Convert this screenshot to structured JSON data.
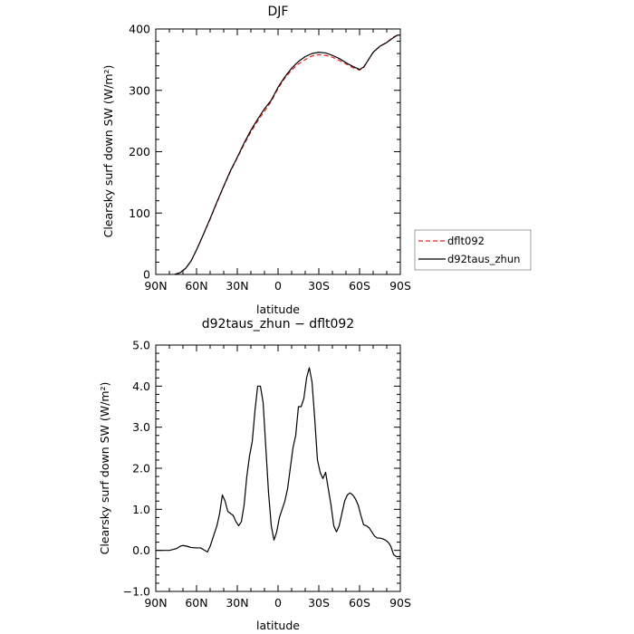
{
  "chart_data": [
    {
      "type": "line",
      "title": "DJF",
      "xlabel": "latitude",
      "ylabel": "Clearsky surf down SW (W/m²)",
      "xlim": [
        90,
        -90
      ],
      "ylim": [
        0,
        400
      ],
      "x_ticks": [
        90,
        60,
        30,
        0,
        -30,
        -60,
        -90
      ],
      "x_tick_labels": [
        "90N",
        "60N",
        "30N",
        "0",
        "30S",
        "60S",
        "90S"
      ],
      "y_ticks": [
        0,
        100,
        200,
        300,
        400
      ],
      "y_tick_labels": [
        "0",
        "100",
        "200",
        "300",
        "400"
      ],
      "legend": {
        "placement": "right",
        "entries": [
          {
            "label": "dflt092",
            "color": "#e8211a",
            "dash": "dashed"
          },
          {
            "label": "d92taus_zhun",
            "color": "#000000",
            "dash": "solid"
          }
        ]
      },
      "series": [
        {
          "name": "dflt092",
          "color": "#e8211a",
          "dash": "dashed",
          "x": [
            76,
            72,
            68,
            64,
            60,
            55,
            50,
            45,
            40,
            35,
            30,
            25,
            20,
            15,
            10,
            5,
            0,
            -5,
            -10,
            -15,
            -20,
            -25,
            -30,
            -35,
            -40,
            -45,
            -50,
            -55,
            -60,
            -63,
            -66,
            -70,
            -75,
            -80,
            -85,
            -88,
            -90
          ],
          "y": [
            0,
            3,
            10,
            22,
            40,
            65,
            90,
            117,
            143,
            168,
            190,
            212,
            232,
            250,
            266,
            282,
            303,
            320,
            333,
            343,
            350,
            356,
            358,
            357,
            354,
            349,
            343,
            337,
            333,
            337,
            348,
            362,
            372,
            378,
            387,
            390,
            390
          ]
        },
        {
          "name": "d92taus_zhun",
          "color": "#000000",
          "dash": "solid",
          "x": [
            76,
            72,
            68,
            64,
            60,
            55,
            50,
            45,
            40,
            35,
            30,
            25,
            20,
            15,
            10,
            5,
            0,
            -5,
            -10,
            -15,
            -20,
            -25,
            -30,
            -35,
            -40,
            -45,
            -50,
            -55,
            -60,
            -63,
            -66,
            -70,
            -75,
            -80,
            -85,
            -88,
            -90
          ],
          "y": [
            0,
            3,
            10,
            22,
            40,
            65,
            91,
            118,
            144,
            169,
            191,
            214,
            235,
            253,
            270,
            284,
            305,
            322,
            336,
            347,
            355,
            360,
            362,
            361,
            357,
            352,
            345,
            339,
            334,
            338,
            348,
            362,
            372,
            378,
            386,
            390,
            390
          ]
        }
      ]
    },
    {
      "type": "line",
      "title": "d92taus_zhun − dflt092",
      "xlabel": "latitude",
      "ylabel": "Clearsky surf down SW (W/m²)",
      "xlim": [
        90,
        -90
      ],
      "ylim": [
        -1,
        5
      ],
      "x_ticks": [
        90,
        60,
        30,
        0,
        -30,
        -60,
        -90
      ],
      "x_tick_labels": [
        "90N",
        "60N",
        "30N",
        "0",
        "30S",
        "60S",
        "90S"
      ],
      "y_ticks": [
        -1,
        0,
        1,
        2,
        3,
        4,
        5
      ],
      "y_tick_labels": [
        "−1.0",
        "0.0",
        "1.0",
        "2.0",
        "3.0",
        "4.0",
        "5.0"
      ],
      "series": [
        {
          "color": "#000000",
          "dash": "solid",
          "x": [
            90,
            85,
            80,
            75,
            72,
            70,
            67,
            64,
            60,
            57,
            54,
            52,
            50,
            48,
            45,
            43,
            41,
            39,
            37,
            35,
            33,
            31,
            29,
            27,
            25,
            23,
            21,
            19,
            17,
            15,
            13,
            11,
            9,
            7,
            5,
            3,
            1,
            -1,
            -3,
            -5,
            -7,
            -9,
            -11,
            -13,
            -15,
            -17,
            -19,
            -21,
            -23,
            -25,
            -27,
            -29,
            -31,
            -33,
            -35,
            -37,
            -39,
            -41,
            -43,
            -45,
            -47,
            -49,
            -51,
            -53,
            -55,
            -57,
            -59,
            -61,
            -63,
            -65,
            -67,
            -69,
            -71,
            -73,
            -75,
            -77,
            -79,
            -81,
            -83,
            -85,
            -87,
            -89,
            -90
          ],
          "y": [
            0.0,
            0.0,
            0.0,
            0.04,
            0.1,
            0.12,
            0.1,
            0.07,
            0.06,
            0.06,
            0.0,
            -0.04,
            0.1,
            0.3,
            0.6,
            0.9,
            1.35,
            1.2,
            0.95,
            0.9,
            0.85,
            0.7,
            0.6,
            0.7,
            1.1,
            1.8,
            2.3,
            2.65,
            3.4,
            4.0,
            4.0,
            3.6,
            2.5,
            1.4,
            0.6,
            0.25,
            0.45,
            0.8,
            1.0,
            1.2,
            1.5,
            2.0,
            2.5,
            2.8,
            3.5,
            3.5,
            3.7,
            4.2,
            4.45,
            4.1,
            3.2,
            2.2,
            1.9,
            1.75,
            1.9,
            1.5,
            1.1,
            0.6,
            0.45,
            0.6,
            0.9,
            1.2,
            1.35,
            1.4,
            1.35,
            1.25,
            1.1,
            0.85,
            0.62,
            0.6,
            0.55,
            0.45,
            0.35,
            0.3,
            0.3,
            0.28,
            0.25,
            0.2,
            0.1,
            -0.1,
            -0.15,
            -0.15,
            -0.15
          ]
        }
      ]
    }
  ]
}
